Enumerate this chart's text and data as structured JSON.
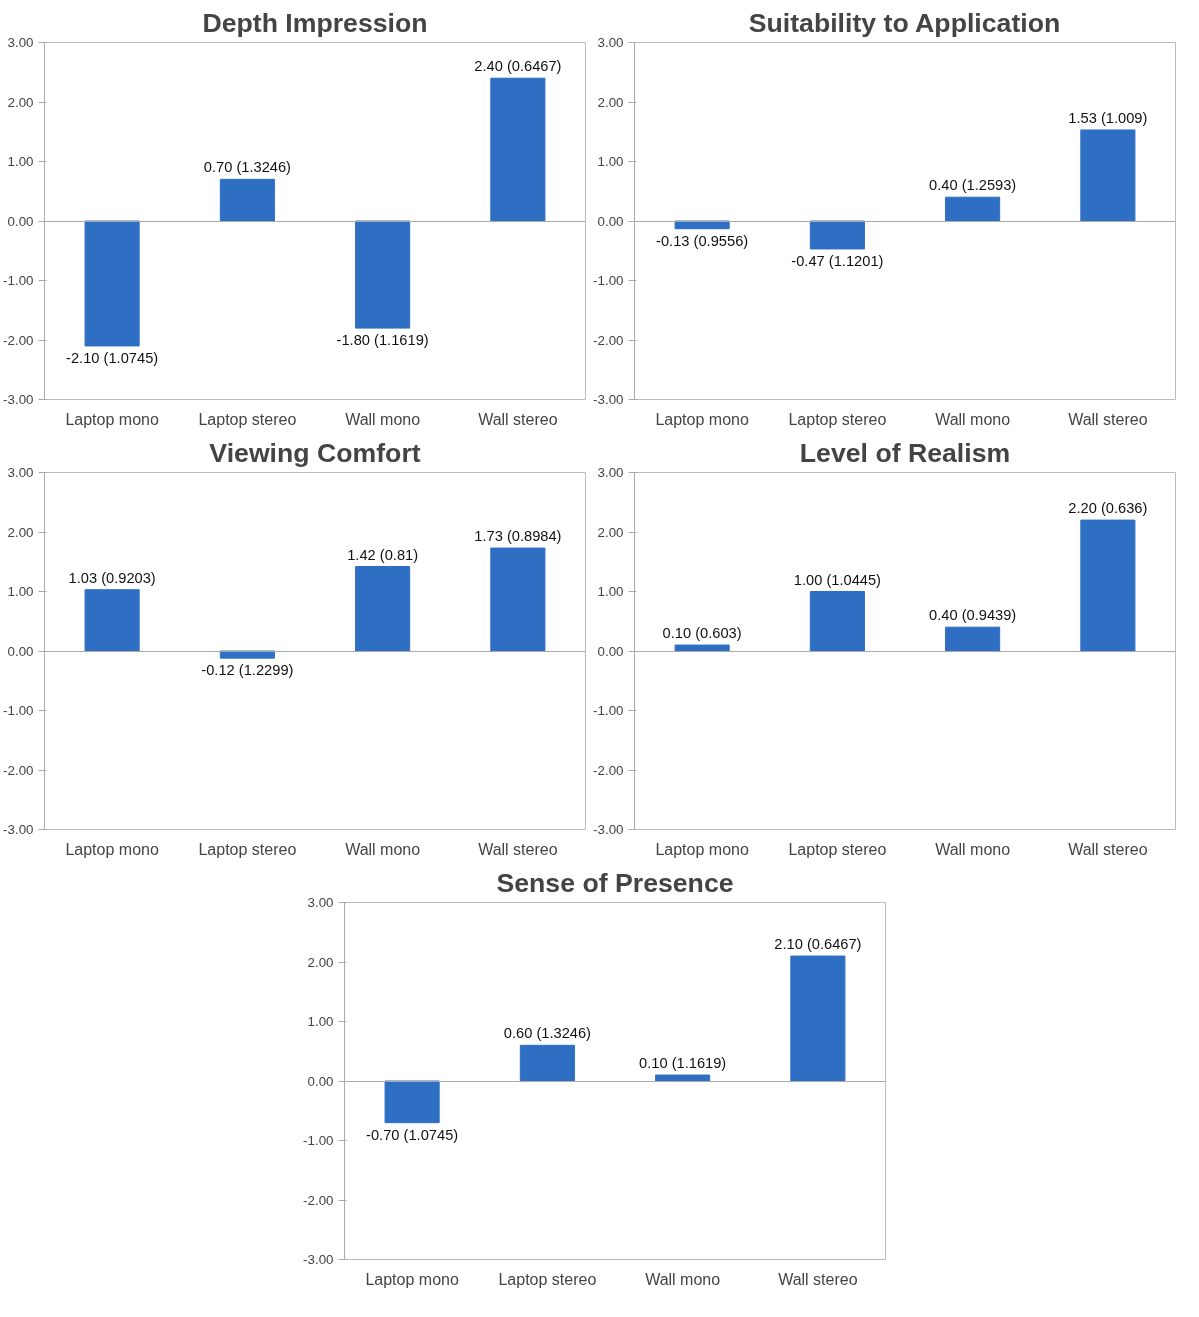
{
  "chart_data": [
    {
      "type": "bar",
      "title": "Depth Impression",
      "categories": [
        "Laptop mono",
        "Laptop stereo",
        "Wall mono",
        "Wall stereo"
      ],
      "values": [
        -2.1,
        0.7,
        -1.8,
        2.4
      ],
      "value_labels": [
        "-2.10 (1.0745)",
        "0.70 (1.3246)",
        "-1.80 (1.1619)",
        "2.40 (0.6467)"
      ],
      "color": "#2f6fc3",
      "ylim": [
        -3,
        3
      ],
      "yticks": [
        {
          "value": -3,
          "label": "-3.00"
        },
        {
          "value": -2,
          "label": "-2.00"
        },
        {
          "value": -1,
          "label": "-1.00"
        },
        {
          "value": 0,
          "label": "0.00"
        },
        {
          "value": 1,
          "label": "1.00"
        },
        {
          "value": 2,
          "label": "2.00"
        },
        {
          "value": 3,
          "label": "3.00"
        }
      ]
    },
    {
      "type": "bar",
      "title": "Suitability to Application",
      "categories": [
        "Laptop mono",
        "Laptop stereo",
        "Wall mono",
        "Wall stereo"
      ],
      "values": [
        -0.13,
        -0.47,
        0.4,
        1.53
      ],
      "value_labels": [
        "-0.13 (0.9556)",
        "-0.47 (1.1201)",
        "0.40 (1.2593)",
        "1.53 (1.009)"
      ],
      "color": "#2f6fc3",
      "ylim": [
        -3,
        3
      ],
      "yticks": [
        {
          "value": -3,
          "label": "-3.00"
        },
        {
          "value": -2,
          "label": "-2.00"
        },
        {
          "value": -1,
          "label": "-1.00"
        },
        {
          "value": 0,
          "label": "0.00"
        },
        {
          "value": 1,
          "label": "1.00"
        },
        {
          "value": 2,
          "label": "2.00"
        },
        {
          "value": 3,
          "label": "3.00"
        }
      ]
    },
    {
      "type": "bar",
      "title": "Viewing Comfort",
      "categories": [
        "Laptop mono",
        "Laptop stereo",
        "Wall mono",
        "Wall stereo"
      ],
      "values": [
        1.03,
        -0.12,
        1.42,
        1.73
      ],
      "value_labels": [
        "1.03 (0.9203)",
        "-0.12 (1.2299)",
        "1.42 (0.81)",
        "1.73 (0.8984)"
      ],
      "color": "#2f6fc3",
      "ylim": [
        -3,
        3
      ],
      "yticks": [
        {
          "value": -3,
          "label": "-3.00"
        },
        {
          "value": -2,
          "label": "-2.00"
        },
        {
          "value": -1,
          "label": "-1.00"
        },
        {
          "value": 0,
          "label": "0.00"
        },
        {
          "value": 1,
          "label": "1.00"
        },
        {
          "value": 2,
          "label": "2.00"
        },
        {
          "value": 3,
          "label": "3.00"
        }
      ]
    },
    {
      "type": "bar",
      "title": "Level of Realism",
      "categories": [
        "Laptop mono",
        "Laptop stereo",
        "Wall mono",
        "Wall stereo"
      ],
      "values": [
        0.1,
        1.0,
        0.4,
        2.2
      ],
      "value_labels": [
        "0.10 (0.603)",
        "1.00 (1.0445)",
        "0.40 (0.9439)",
        "2.20 (0.636)"
      ],
      "color": "#2f6fc3",
      "ylim": [
        -3,
        3
      ],
      "yticks": [
        {
          "value": -3,
          "label": "-3.00"
        },
        {
          "value": -2,
          "label": "-2.00"
        },
        {
          "value": -1,
          "label": "-1.00"
        },
        {
          "value": 0,
          "label": "0.00"
        },
        {
          "value": 1,
          "label": "1.00"
        },
        {
          "value": 2,
          "label": "2.00"
        },
        {
          "value": 3,
          "label": "3.00"
        }
      ]
    },
    {
      "type": "bar",
      "title": "Sense of Presence",
      "categories": [
        "Laptop mono",
        "Laptop stereo",
        "Wall mono",
        "Wall stereo"
      ],
      "values": [
        -0.7,
        0.6,
        0.1,
        2.1
      ],
      "value_labels": [
        "-0.70 (1.0745)",
        "0.60 (1.3246)",
        "0.10 (1.1619)",
        "2.10 (0.6467)"
      ],
      "color": "#2f6fc3",
      "ylim": [
        -3,
        3
      ],
      "yticks": [
        {
          "value": -3,
          "label": "-3.00"
        },
        {
          "value": -2,
          "label": "-2.00"
        },
        {
          "value": -1,
          "label": "-1.00"
        },
        {
          "value": 0,
          "label": "0.00"
        },
        {
          "value": 1,
          "label": "1.00"
        },
        {
          "value": 2,
          "label": "2.00"
        },
        {
          "value": 3,
          "label": "3.00"
        }
      ]
    }
  ]
}
